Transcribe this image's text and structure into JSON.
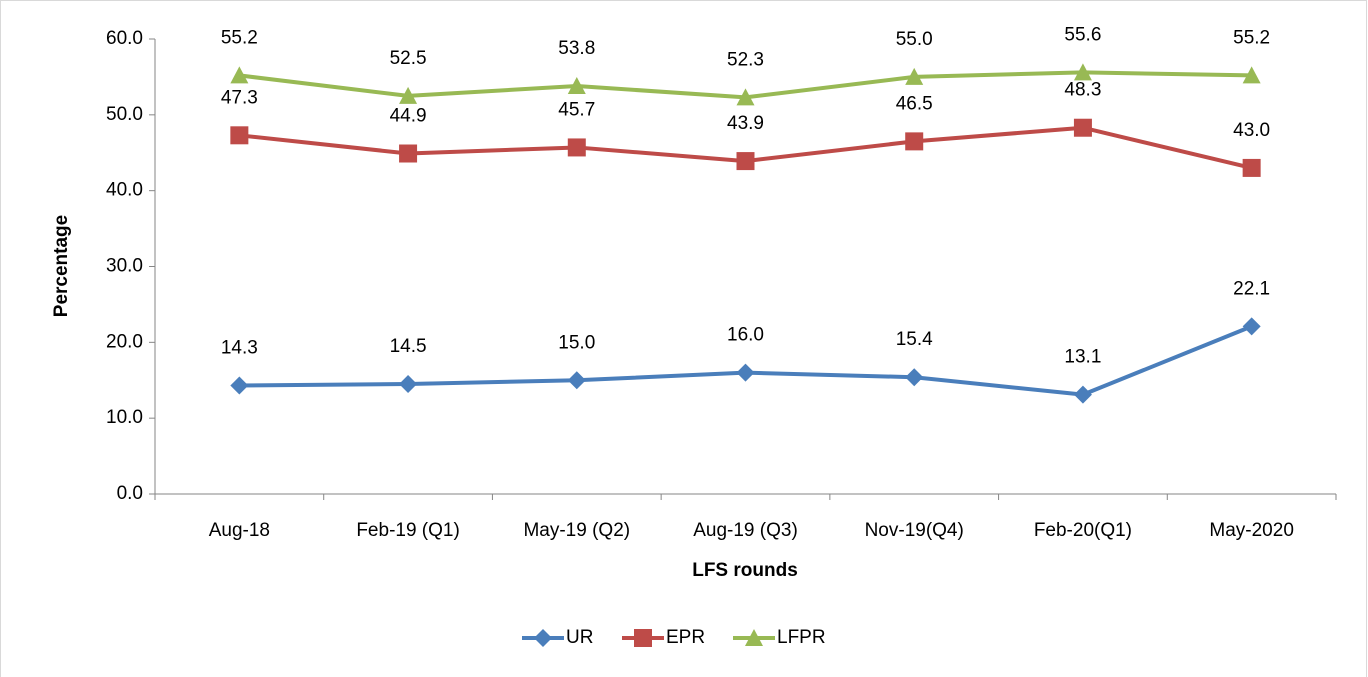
{
  "chart_data": {
    "type": "line",
    "x_label": "LFS rounds",
    "y_label": "Percentage",
    "categories": [
      "Aug-18",
      "Feb-19 (Q1)",
      "May-19 (Q2)",
      "Aug-19 (Q3)",
      "Nov-19(Q4)",
      "Feb-20(Q1)",
      "May-2020"
    ],
    "series": [
      {
        "name": "UR",
        "color": "#4a7ebb",
        "marker": "diamond",
        "values": [
          14.3,
          14.5,
          15.0,
          16.0,
          15.4,
          13.1,
          22.1
        ],
        "value_labels": [
          "14.3",
          "14.5",
          "15.0",
          "16.0",
          "15.4",
          "13.1",
          "22.1"
        ]
      },
      {
        "name": "EPR",
        "color": "#be4b48",
        "marker": "square",
        "values": [
          47.3,
          44.9,
          45.7,
          43.9,
          46.5,
          48.3,
          43.0
        ],
        "value_labels": [
          "47.3",
          "44.9",
          "45.7",
          "43.9",
          "46.5",
          "48.3",
          "43.0"
        ]
      },
      {
        "name": "LFPR",
        "color": "#98b954",
        "marker": "triangle",
        "values": [
          55.2,
          52.5,
          53.8,
          52.3,
          55.0,
          55.6,
          55.2
        ],
        "value_labels": [
          "55.2",
          "52.5",
          "53.8",
          "52.3",
          "55.0",
          "55.6",
          "55.2"
        ]
      }
    ],
    "ylim": [
      0,
      60
    ],
    "yticks": [
      {
        "value": 0,
        "label": "0.0"
      },
      {
        "value": 10,
        "label": "10.0"
      },
      {
        "value": 20,
        "label": "20.0"
      },
      {
        "value": 30,
        "label": "30.0"
      },
      {
        "value": 40,
        "label": "40.0"
      },
      {
        "value": 50,
        "label": "50.0"
      },
      {
        "value": 60,
        "label": "60.0"
      }
    ],
    "legend": "bottom"
  }
}
